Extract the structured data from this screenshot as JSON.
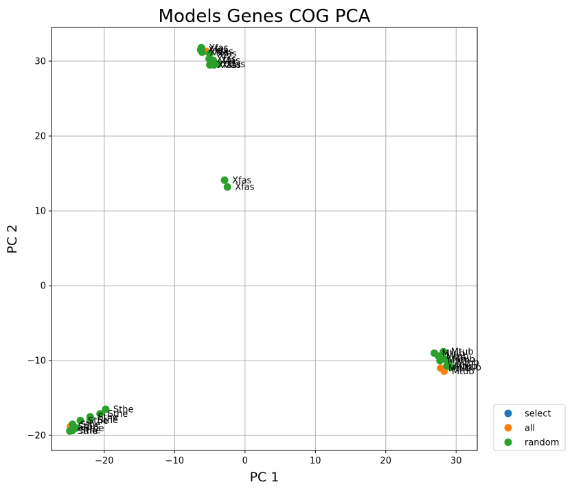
{
  "chart_data": {
    "type": "scatter",
    "title": "Models Genes COG PCA",
    "xlabel": "PC 1",
    "ylabel": "PC 2",
    "xlim": [
      -27.5,
      33
    ],
    "ylim": [
      -22,
      34.5
    ],
    "xticks": [
      -20,
      -10,
      0,
      10,
      20,
      30
    ],
    "yticks": [
      -20,
      -10,
      0,
      10,
      20,
      30
    ],
    "grid": true,
    "legend": {
      "placement": "outside-lower-right"
    },
    "series": [
      {
        "name": "select",
        "color": "#1f77b4",
        "points": []
      },
      {
        "name": "all",
        "color": "#ff7f0e",
        "points": [
          {
            "x": -5.5,
            "y": 31.3,
            "label": "Xfas"
          },
          {
            "x": -24.8,
            "y": -18.8,
            "label": "Sthe"
          },
          {
            "x": 27.8,
            "y": -11.0,
            "label": "Mtub"
          },
          {
            "x": 28.3,
            "y": -11.4,
            "label": "Mtub"
          }
        ]
      },
      {
        "name": "random",
        "color": "#2ca02c",
        "points": [
          {
            "x": -6.2,
            "y": 31.8,
            "label": "Xfas"
          },
          {
            "x": -6.3,
            "y": 31.5,
            "label": "Xfas"
          },
          {
            "x": -6.1,
            "y": 31.2,
            "label": "Xfas"
          },
          {
            "x": -5.0,
            "y": 31.0,
            "label": "Xfas"
          },
          {
            "x": -5.1,
            "y": 30.3,
            "label": "Xfas"
          },
          {
            "x": -4.5,
            "y": 30.1,
            "label": "Xfas"
          },
          {
            "x": -5.0,
            "y": 29.5,
            "label": "Xfas"
          },
          {
            "x": -4.4,
            "y": 29.5,
            "label": "Xfas"
          },
          {
            "x": -3.8,
            "y": 29.6,
            "label": "Xfas"
          },
          {
            "x": -2.9,
            "y": 14.1,
            "label": "Xfas"
          },
          {
            "x": -2.5,
            "y": 13.2,
            "label": "Xfas"
          },
          {
            "x": -19.8,
            "y": -16.5,
            "label": "Sthe"
          },
          {
            "x": -20.6,
            "y": -17.1,
            "label": "Sthe"
          },
          {
            "x": -22.0,
            "y": -17.5,
            "label": "Sthe"
          },
          {
            "x": -22.0,
            "y": -17.9,
            "label": "Sthe"
          },
          {
            "x": -23.4,
            "y": -18.0,
            "label": "Sthe"
          },
          {
            "x": -24.5,
            "y": -18.5,
            "label": "Sthe"
          },
          {
            "x": -24.0,
            "y": -19.0,
            "label": "Sthe"
          },
          {
            "x": -24.5,
            "y": -19.3,
            "label": "Sthe"
          },
          {
            "x": -24.9,
            "y": -19.4,
            "label": "Sthe"
          },
          {
            "x": 26.9,
            "y": -9.0,
            "label": "Mtub"
          },
          {
            "x": 28.2,
            "y": -8.8,
            "label": "Mtub"
          },
          {
            "x": 27.5,
            "y": -9.4,
            "label": "Mtub"
          },
          {
            "x": 27.7,
            "y": -10.0,
            "label": "Mtub"
          },
          {
            "x": 28.4,
            "y": -9.8,
            "label": "Mtub"
          },
          {
            "x": 29.0,
            "y": -10.2,
            "label": "Mtub"
          },
          {
            "x": 28.7,
            "y": -10.7,
            "label": "Mtub"
          },
          {
            "x": 29.3,
            "y": -10.9,
            "label": "Mtub"
          }
        ]
      }
    ]
  }
}
